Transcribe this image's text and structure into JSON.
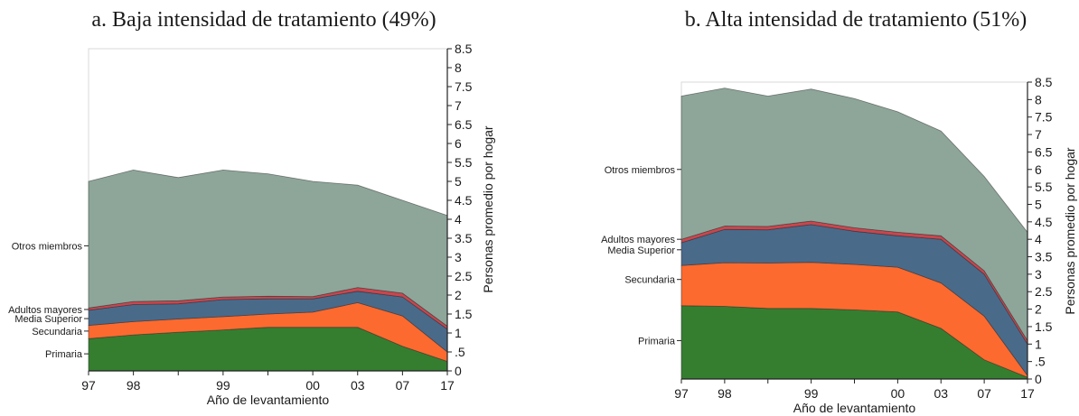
{
  "chart_data": [
    {
      "type": "area",
      "stacked": true,
      "title": "a. Baja intensidad de tratamiento (49%)",
      "xlabel": "Año de levantamiento",
      "ylabel": "Personas promedio por hogar",
      "x": [
        "97",
        "98",
        "",
        "99",
        "",
        "00",
        "03",
        "07",
        "17"
      ],
      "ylim": [
        0,
        8.5
      ],
      "yticks": [
        "0",
        ".5",
        "1",
        "1.5",
        "2",
        "2.5",
        "3",
        "3.5",
        "4",
        "4.5",
        "5",
        "5.5",
        "6",
        "6.5",
        "7",
        "7.5",
        "8",
        "8.5"
      ],
      "series": [
        {
          "name": "Primaria",
          "color": "#357e30",
          "values": [
            0.85,
            0.95,
            1.02,
            1.08,
            1.15,
            1.15,
            1.15,
            0.65,
            0.25
          ]
        },
        {
          "name": "Secundaria",
          "color": "#fd6a2f",
          "values": [
            0.35,
            0.35,
            0.35,
            0.35,
            0.35,
            0.4,
            0.65,
            0.8,
            0.25
          ]
        },
        {
          "name": "Media Superior",
          "color": "#4a6a8a",
          "values": [
            0.4,
            0.45,
            0.4,
            0.45,
            0.4,
            0.35,
            0.3,
            0.5,
            0.6
          ]
        },
        {
          "name": "Adultos mayores",
          "color": "#c9464e",
          "values": [
            0.06,
            0.08,
            0.08,
            0.07,
            0.07,
            0.06,
            0.1,
            0.1,
            0.08
          ]
        },
        {
          "name": "Otros miembros",
          "color": "#8ea69a",
          "values": [
            3.34,
            3.47,
            3.25,
            3.35,
            3.23,
            3.04,
            2.7,
            2.45,
            2.92
          ]
        }
      ],
      "category_labels": [
        {
          "name": "Otros miembros",
          "value": 3.3
        },
        {
          "name": "Adultos mayores",
          "value": 1.62
        },
        {
          "name": "Media Superior",
          "value": 1.38
        },
        {
          "name": "Secundaria",
          "value": 1.05
        },
        {
          "name": "Primaria",
          "value": 0.45
        }
      ]
    },
    {
      "type": "area",
      "stacked": true,
      "title": "b. Alta intensidad de tratamiento (51%)",
      "xlabel": "Año de levantamiento",
      "ylabel": "Personas promedio por hogar",
      "x": [
        "97",
        "98",
        "",
        "99",
        "",
        "00",
        "03",
        "07",
        "17"
      ],
      "ylim": [
        0,
        8.5
      ],
      "yticks": [
        "0",
        ".5",
        "1",
        "1.5",
        "2",
        "2.5",
        "3",
        "3.5",
        "4",
        "4.5",
        "5",
        "5.5",
        "6",
        "6.5",
        "7",
        "7.5",
        "8",
        "8.5"
      ],
      "series": [
        {
          "name": "Primaria",
          "color": "#357e30",
          "values": [
            2.1,
            2.08,
            2.02,
            2.02,
            1.98,
            1.92,
            1.45,
            0.55,
            0.05
          ]
        },
        {
          "name": "Secundaria",
          "color": "#fd6a2f",
          "values": [
            1.15,
            1.25,
            1.3,
            1.32,
            1.3,
            1.28,
            1.3,
            1.25,
            0.05
          ]
        },
        {
          "name": "Media Superior",
          "color": "#4a6a8a",
          "values": [
            0.65,
            0.95,
            0.95,
            1.08,
            0.95,
            0.9,
            1.25,
            1.2,
            0.9
          ]
        },
        {
          "name": "Adultos mayores",
          "color": "#c9464e",
          "values": [
            0.1,
            0.1,
            0.1,
            0.1,
            0.1,
            0.1,
            0.1,
            0.1,
            0.1
          ]
        },
        {
          "name": "Otros miembros",
          "color": "#8ea69a",
          "values": [
            4.1,
            3.95,
            3.73,
            3.78,
            3.7,
            3.45,
            3.0,
            2.7,
            3.1
          ]
        }
      ],
      "category_labels": [
        {
          "name": "Otros miembros",
          "value": 6.0
        },
        {
          "name": "Adultos mayores",
          "value": 4.0
        },
        {
          "name": "Media Superior",
          "value": 3.7
        },
        {
          "name": "Secundaria",
          "value": 2.85
        },
        {
          "name": "Primaria",
          "value": 1.1
        }
      ]
    }
  ]
}
